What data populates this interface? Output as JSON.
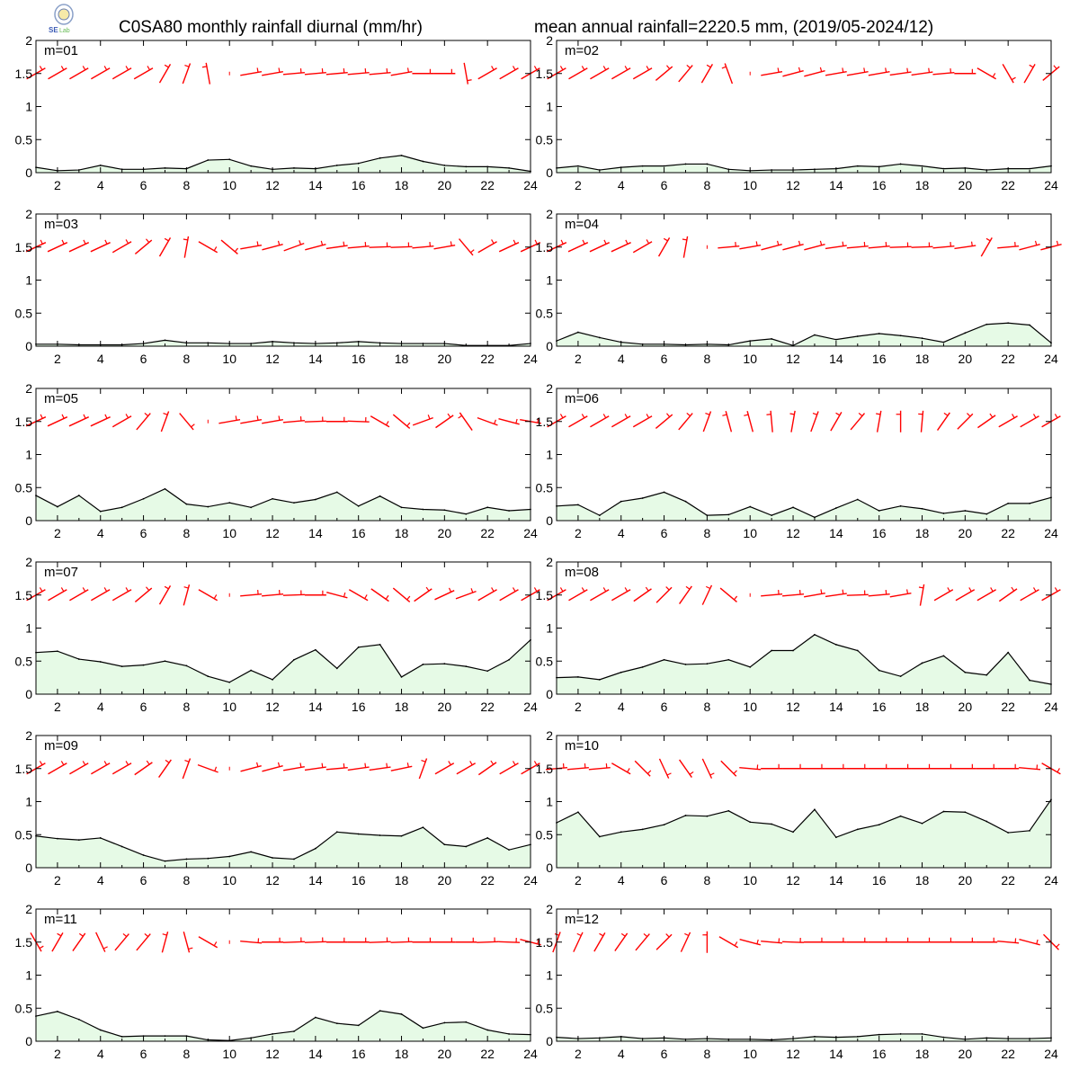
{
  "header": {
    "title_left": "C0SA80 monthly rainfall diurnal (mm/hr)",
    "title_right": "mean annual rainfall=2220.5 mm, (2019/05-2024/12)"
  },
  "colors": {
    "fill": "#e6fae6",
    "line": "#000000",
    "wind": "#ff0000"
  },
  "icons": {
    "logo": "station-logo-icon"
  },
  "chart_data": [
    {
      "type": "area",
      "label": "m=01",
      "x": [
        1,
        2,
        3,
        4,
        5,
        6,
        7,
        8,
        9,
        10,
        11,
        12,
        13,
        14,
        15,
        16,
        17,
        18,
        19,
        20,
        21,
        22,
        23,
        24
      ],
      "values": [
        0.08,
        0.03,
        0.04,
        0.11,
        0.05,
        0.05,
        0.07,
        0.06,
        0.19,
        0.2,
        0.1,
        0.05,
        0.07,
        0.06,
        0.11,
        0.14,
        0.22,
        0.26,
        0.17,
        0.11,
        0.09,
        0.09,
        0.07,
        0.02
      ],
      "wind_dir": [
        240,
        240,
        240,
        240,
        240,
        240,
        210,
        200,
        170,
        null,
        260,
        260,
        265,
        265,
        265,
        265,
        265,
        260,
        270,
        270,
        350,
        240,
        240,
        240
      ],
      "xticks": [
        2,
        4,
        6,
        8,
        10,
        12,
        14,
        16,
        18,
        20,
        22,
        24
      ],
      "yticks": [
        0,
        0.5,
        1,
        1.5,
        2
      ],
      "ylim": [
        0,
        2
      ],
      "xlim": [
        1,
        24
      ]
    },
    {
      "type": "area",
      "label": "m=02",
      "x": [
        1,
        2,
        3,
        4,
        5,
        6,
        7,
        8,
        9,
        10,
        11,
        12,
        13,
        14,
        15,
        16,
        17,
        18,
        19,
        20,
        21,
        22,
        23,
        24
      ],
      "values": [
        0.07,
        0.1,
        0.04,
        0.08,
        0.1,
        0.1,
        0.13,
        0.13,
        0.05,
        0.03,
        0.04,
        0.04,
        0.05,
        0.06,
        0.1,
        0.09,
        0.13,
        0.1,
        0.06,
        0.07,
        0.04,
        0.06,
        0.06,
        0.1
      ],
      "wind_dir": [
        240,
        240,
        240,
        240,
        240,
        230,
        220,
        210,
        160,
        null,
        260,
        255,
        255,
        260,
        260,
        260,
        262,
        262,
        265,
        270,
        300,
        330,
        210,
        230
      ],
      "xticks": [
        2,
        4,
        6,
        8,
        10,
        12,
        14,
        16,
        18,
        20,
        22,
        24
      ],
      "yticks": [
        0,
        0.5,
        1,
        1.5,
        2
      ],
      "ylim": [
        0,
        2
      ],
      "xlim": [
        1,
        24
      ]
    },
    {
      "type": "area",
      "label": "m=03",
      "x": [
        1,
        2,
        3,
        4,
        5,
        6,
        7,
        8,
        9,
        10,
        11,
        12,
        13,
        14,
        15,
        16,
        17,
        18,
        19,
        20,
        21,
        22,
        23,
        24
      ],
      "values": [
        0.03,
        0.03,
        0.02,
        0.02,
        0.02,
        0.04,
        0.09,
        0.05,
        0.05,
        0.04,
        0.04,
        0.07,
        0.05,
        0.04,
        0.05,
        0.07,
        0.05,
        0.04,
        0.04,
        0.04,
        0.01,
        0.01,
        0.01,
        0.04
      ],
      "wind_dir": [
        245,
        245,
        245,
        245,
        240,
        230,
        210,
        190,
        300,
        310,
        260,
        255,
        250,
        255,
        262,
        265,
        268,
        268,
        265,
        260,
        320,
        240,
        245,
        245
      ],
      "xticks": [
        2,
        4,
        6,
        8,
        10,
        12,
        14,
        16,
        18,
        20,
        22,
        24
      ],
      "yticks": [
        0,
        0.5,
        1,
        1.5,
        2
      ],
      "ylim": [
        0,
        2
      ],
      "xlim": [
        1,
        24
      ]
    },
    {
      "type": "area",
      "label": "m=04",
      "x": [
        1,
        2,
        3,
        4,
        5,
        6,
        7,
        8,
        9,
        10,
        11,
        12,
        13,
        14,
        15,
        16,
        17,
        18,
        19,
        20,
        21,
        22,
        23,
        24
      ],
      "values": [
        0.08,
        0.21,
        0.13,
        0.06,
        0.03,
        0.03,
        0.02,
        0.03,
        0.02,
        0.08,
        0.11,
        0.01,
        0.17,
        0.1,
        0.15,
        0.19,
        0.16,
        0.12,
        0.06,
        0.2,
        0.33,
        0.35,
        0.32,
        0.05
      ],
      "wind_dir": [
        245,
        245,
        245,
        245,
        240,
        210,
        190,
        null,
        265,
        260,
        255,
        255,
        255,
        262,
        265,
        265,
        268,
        268,
        265,
        262,
        210,
        265,
        255,
        255
      ],
      "xticks": [
        2,
        4,
        6,
        8,
        10,
        12,
        14,
        16,
        18,
        20,
        22,
        24
      ],
      "yticks": [
        0,
        0.5,
        1,
        1.5,
        2
      ],
      "ylim": [
        0,
        2
      ],
      "xlim": [
        1,
        24
      ]
    },
    {
      "type": "area",
      "label": "m=05",
      "x": [
        1,
        2,
        3,
        4,
        5,
        6,
        7,
        8,
        9,
        10,
        11,
        12,
        13,
        14,
        15,
        16,
        17,
        18,
        19,
        20,
        21,
        22,
        23,
        24
      ],
      "values": [
        0.38,
        0.21,
        0.38,
        0.14,
        0.2,
        0.33,
        0.48,
        0.25,
        0.21,
        0.27,
        0.2,
        0.33,
        0.27,
        0.32,
        0.43,
        0.22,
        0.37,
        0.2,
        0.17,
        0.16,
        0.1,
        0.2,
        0.15,
        0.17
      ],
      "wind_dir": [
        245,
        245,
        245,
        245,
        240,
        220,
        200,
        320,
        null,
        260,
        260,
        260,
        265,
        268,
        270,
        272,
        300,
        310,
        250,
        235,
        145,
        290,
        285,
        280
      ],
      "xticks": [
        2,
        4,
        6,
        8,
        10,
        12,
        14,
        16,
        18,
        20,
        22,
        24
      ],
      "yticks": [
        0,
        0.5,
        1,
        1.5,
        2
      ],
      "ylim": [
        0,
        2
      ],
      "xlim": [
        1,
        24
      ]
    },
    {
      "type": "area",
      "label": "m=06",
      "x": [
        1,
        2,
        3,
        4,
        5,
        6,
        7,
        8,
        9,
        10,
        11,
        12,
        13,
        14,
        15,
        16,
        17,
        18,
        19,
        20,
        21,
        22,
        23,
        24
      ],
      "values": [
        0.22,
        0.24,
        0.08,
        0.29,
        0.34,
        0.43,
        0.29,
        0.08,
        0.09,
        0.21,
        0.08,
        0.2,
        0.05,
        0.19,
        0.32,
        0.15,
        0.22,
        0.18,
        0.11,
        0.15,
        0.1,
        0.26,
        0.26,
        0.35
      ],
      "wind_dir": [
        240,
        240,
        240,
        240,
        240,
        230,
        220,
        200,
        165,
        165,
        175,
        190,
        200,
        210,
        220,
        190,
        180,
        185,
        215,
        225,
        235,
        240,
        240,
        240
      ],
      "xticks": [
        2,
        4,
        6,
        8,
        10,
        12,
        14,
        16,
        18,
        20,
        22,
        24
      ],
      "yticks": [
        0,
        0.5,
        1,
        1.5,
        2
      ],
      "ylim": [
        0,
        2
      ],
      "xlim": [
        1,
        24
      ]
    },
    {
      "type": "area",
      "label": "m=07",
      "x": [
        1,
        2,
        3,
        4,
        5,
        6,
        7,
        8,
        9,
        10,
        11,
        12,
        13,
        14,
        15,
        16,
        17,
        18,
        19,
        20,
        21,
        22,
        23,
        24
      ],
      "values": [
        0.63,
        0.65,
        0.53,
        0.49,
        0.42,
        0.44,
        0.5,
        0.43,
        0.27,
        0.18,
        0.36,
        0.22,
        0.52,
        0.67,
        0.39,
        0.71,
        0.75,
        0.26,
        0.45,
        0.46,
        0.42,
        0.35,
        0.52,
        0.82
      ],
      "wind_dir": [
        240,
        240,
        240,
        240,
        240,
        230,
        210,
        195,
        300,
        null,
        265,
        265,
        268,
        270,
        285,
        300,
        305,
        310,
        235,
        245,
        250,
        240,
        240,
        240
      ],
      "xticks": [
        2,
        4,
        6,
        8,
        10,
        12,
        14,
        16,
        18,
        20,
        22,
        24
      ],
      "yticks": [
        0,
        0.5,
        1,
        1.5,
        2
      ],
      "ylim": [
        0,
        2
      ],
      "xlim": [
        1,
        24
      ]
    },
    {
      "type": "area",
      "label": "m=08",
      "x": [
        1,
        2,
        3,
        4,
        5,
        6,
        7,
        8,
        9,
        10,
        11,
        12,
        13,
        14,
        15,
        16,
        17,
        18,
        19,
        20,
        21,
        22,
        23,
        24
      ],
      "values": [
        0.25,
        0.26,
        0.22,
        0.33,
        0.41,
        0.52,
        0.45,
        0.46,
        0.52,
        0.41,
        0.66,
        0.66,
        0.9,
        0.75,
        0.66,
        0.36,
        0.27,
        0.47,
        0.58,
        0.33,
        0.29,
        0.63,
        0.21,
        0.15
      ],
      "wind_dir": [
        240,
        240,
        240,
        240,
        235,
        225,
        215,
        205,
        310,
        null,
        265,
        265,
        260,
        262,
        268,
        265,
        260,
        190,
        240,
        240,
        240,
        235,
        240,
        240
      ],
      "xticks": [
        2,
        4,
        6,
        8,
        10,
        12,
        14,
        16,
        18,
        20,
        22,
        24
      ],
      "yticks": [
        0,
        0.5,
        1,
        1.5,
        2
      ],
      "ylim": [
        0,
        2
      ],
      "xlim": [
        1,
        24
      ]
    },
    {
      "type": "area",
      "label": "m=09",
      "x": [
        1,
        2,
        3,
        4,
        5,
        6,
        7,
        8,
        9,
        10,
        11,
        12,
        13,
        14,
        15,
        16,
        17,
        18,
        19,
        20,
        21,
        22,
        23,
        24
      ],
      "values": [
        0.48,
        0.44,
        0.42,
        0.45,
        0.32,
        0.19,
        0.1,
        0.13,
        0.14,
        0.17,
        0.24,
        0.15,
        0.13,
        0.29,
        0.54,
        0.51,
        0.49,
        0.48,
        0.61,
        0.35,
        0.32,
        0.45,
        0.27,
        0.35
      ],
      "wind_dir": [
        240,
        240,
        240,
        240,
        240,
        235,
        215,
        200,
        290,
        null,
        255,
        255,
        260,
        262,
        265,
        262,
        262,
        258,
        200,
        240,
        240,
        235,
        240,
        240
      ],
      "xticks": [
        2,
        4,
        6,
        8,
        10,
        12,
        14,
        16,
        18,
        20,
        22,
        24
      ],
      "yticks": [
        0,
        0.5,
        1,
        1.5,
        2
      ],
      "ylim": [
        0,
        2
      ],
      "xlim": [
        1,
        24
      ]
    },
    {
      "type": "area",
      "label": "m=10",
      "x": [
        1,
        2,
        3,
        4,
        5,
        6,
        7,
        8,
        9,
        10,
        11,
        12,
        13,
        14,
        15,
        16,
        17,
        18,
        19,
        20,
        21,
        22,
        23,
        24
      ],
      "values": [
        0.68,
        0.84,
        0.47,
        0.54,
        0.58,
        0.65,
        0.79,
        0.78,
        0.86,
        0.69,
        0.66,
        0.54,
        0.88,
        0.46,
        0.58,
        0.65,
        0.78,
        0.67,
        0.85,
        0.84,
        0.7,
        0.53,
        0.56,
        1.03
      ],
      "wind_dir": [
        265,
        265,
        265,
        300,
        315,
        335,
        325,
        335,
        315,
        275,
        270,
        270,
        270,
        270,
        270,
        270,
        270,
        270,
        270,
        270,
        270,
        270,
        275,
        300
      ],
      "xticks": [
        2,
        4,
        6,
        8,
        10,
        12,
        14,
        16,
        18,
        20,
        22,
        24
      ],
      "yticks": [
        0,
        0.5,
        1,
        1.5,
        2
      ],
      "ylim": [
        0,
        2
      ],
      "xlim": [
        1,
        24
      ]
    },
    {
      "type": "area",
      "label": "m=11",
      "x": [
        1,
        2,
        3,
        4,
        5,
        6,
        7,
        8,
        9,
        10,
        11,
        12,
        13,
        14,
        15,
        16,
        17,
        18,
        19,
        20,
        21,
        22,
        23,
        24
      ],
      "values": [
        0.38,
        0.45,
        0.33,
        0.17,
        0.07,
        0.08,
        0.08,
        0.08,
        0.02,
        0.01,
        0.05,
        0.11,
        0.15,
        0.36,
        0.27,
        0.24,
        0.46,
        0.41,
        0.2,
        0.28,
        0.29,
        0.17,
        0.11,
        0.1
      ],
      "wind_dir": [
        330,
        210,
        215,
        335,
        220,
        220,
        195,
        345,
        300,
        null,
        275,
        270,
        268,
        268,
        270,
        270,
        268,
        268,
        270,
        270,
        270,
        268,
        272,
        285
      ],
      "xticks": [
        2,
        4,
        6,
        8,
        10,
        12,
        14,
        16,
        18,
        20,
        22,
        24
      ],
      "yticks": [
        0,
        0.5,
        1,
        1.5,
        2
      ],
      "ylim": [
        0,
        2
      ],
      "xlim": [
        1,
        24
      ]
    },
    {
      "type": "area",
      "label": "m=12",
      "x": [
        1,
        2,
        3,
        4,
        5,
        6,
        7,
        8,
        9,
        10,
        11,
        12,
        13,
        14,
        15,
        16,
        17,
        18,
        19,
        20,
        21,
        22,
        23,
        24
      ],
      "values": [
        0.06,
        0.04,
        0.05,
        0.07,
        0.04,
        0.05,
        0.03,
        0.04,
        0.03,
        0.03,
        0.02,
        0.04,
        0.07,
        0.06,
        0.07,
        0.1,
        0.11,
        0.11,
        0.06,
        0.03,
        0.05,
        0.04,
        0.04,
        0.05
      ],
      "wind_dir": [
        200,
        205,
        210,
        215,
        220,
        225,
        205,
        180,
        300,
        285,
        275,
        272,
        270,
        270,
        270,
        270,
        270,
        270,
        270,
        270,
        270,
        275,
        285,
        315
      ],
      "xticks": [
        2,
        4,
        6,
        8,
        10,
        12,
        14,
        16,
        18,
        20,
        22,
        24
      ],
      "yticks": [
        0,
        0.5,
        1,
        1.5,
        2
      ],
      "ylim": [
        0,
        2
      ],
      "xlim": [
        1,
        24
      ]
    }
  ]
}
